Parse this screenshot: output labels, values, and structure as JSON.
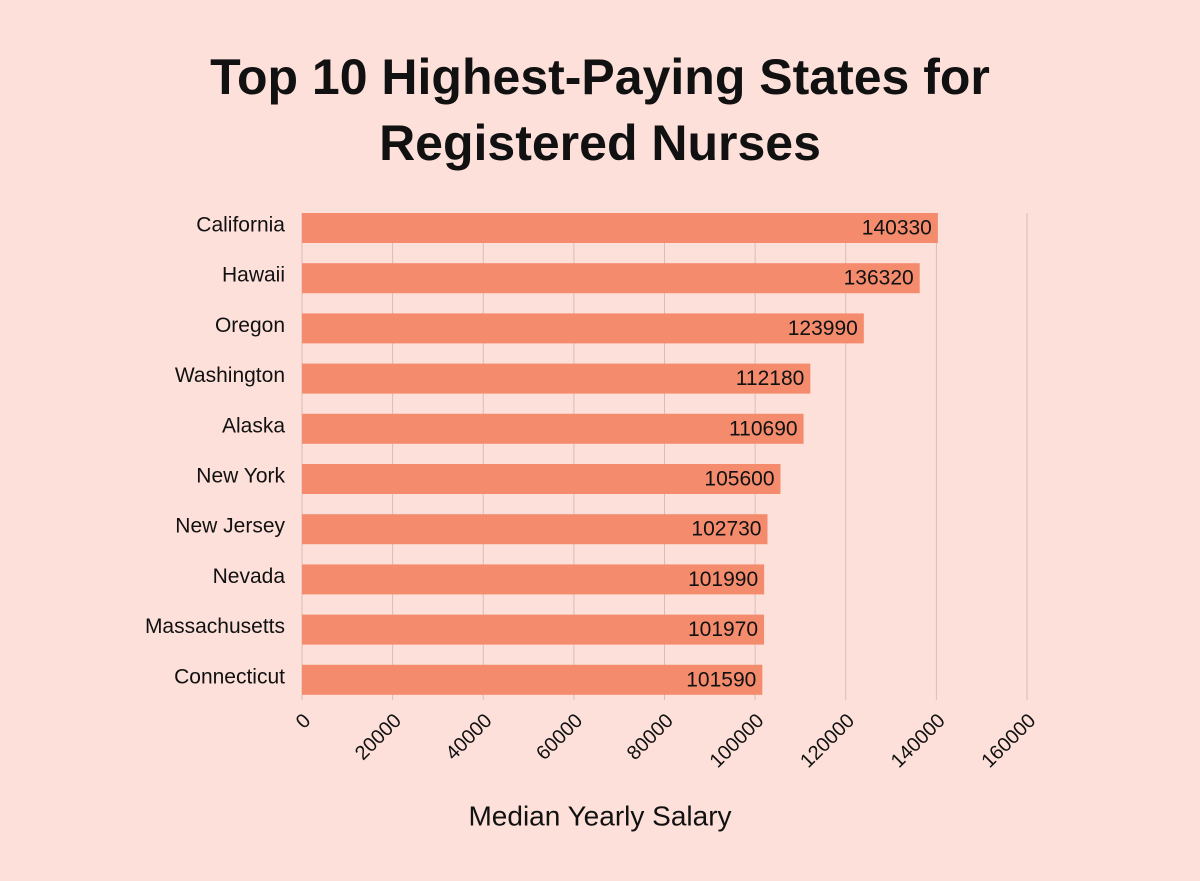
{
  "chart_data": {
    "type": "bar",
    "orientation": "horizontal",
    "title": "Top 10 Highest-Paying States for Registered Nurses",
    "x_label": "Median Yearly Salary",
    "categories": [
      "California",
      "Hawaii",
      "Oregon",
      "Washington",
      "Alaska",
      "New York",
      "New Jersey",
      "Nevada",
      "Massachusetts",
      "Connecticut"
    ],
    "values": [
      140330,
      136320,
      123990,
      112180,
      110690,
      105600,
      102730,
      101990,
      101970,
      101590
    ],
    "color": "#f38b6c",
    "xlim": [
      0,
      160000
    ],
    "xticks": [
      0,
      20000,
      40000,
      60000,
      80000,
      100000,
      120000,
      140000,
      160000
    ],
    "grid": true
  }
}
